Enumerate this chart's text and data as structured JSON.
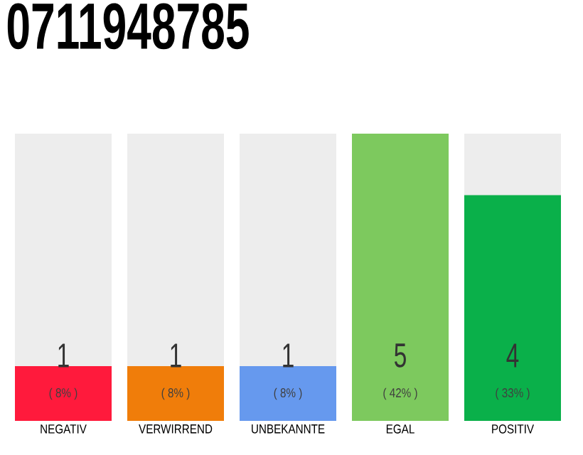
{
  "chart_data": {
    "type": "bar",
    "title": "0711948785",
    "categories": [
      "NEGATIV",
      "VERWIRREND",
      "UNBEKANNTE",
      "EGAL",
      "POSITIV"
    ],
    "values": [
      8,
      8,
      8,
      42,
      33
    ],
    "colors": [
      "#ff1a3c",
      "#f07d0a",
      "#6699ee",
      "#7dc95e",
      "#0ab04a"
    ],
    "value_labels": [
      "( 8% )",
      "( 8% )",
      "( 8% )",
      "( 42% )",
      "( 33% )"
    ],
    "annotations": [
      "1",
      "1",
      "1",
      "5",
      "4"
    ]
  }
}
